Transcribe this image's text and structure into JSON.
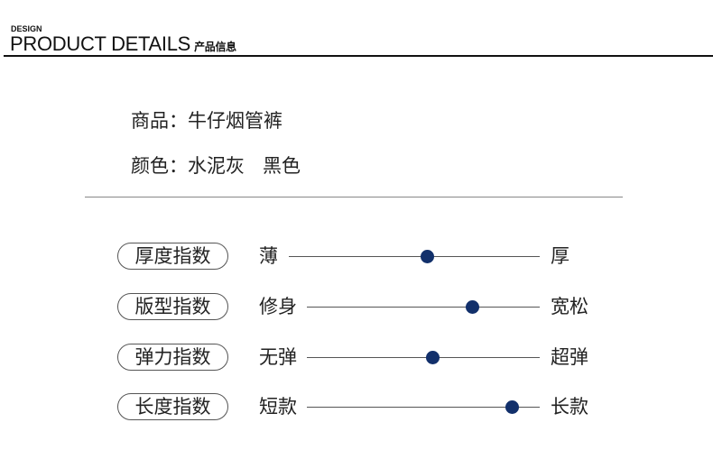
{
  "header": {
    "small": "DESIGN",
    "title": "PRODUCT DETAILS",
    "title_cn": "产品信息"
  },
  "info": {
    "product": "商品：牛仔烟管裤",
    "color": "颜色：水泥灰   黑色"
  },
  "accent": "#12306b",
  "indices": [
    {
      "label": "厚度指数",
      "left": "薄",
      "right": "厚",
      "value": 0.55
    },
    {
      "label": "版型指数",
      "left": "修身",
      "right": "宽松",
      "value": 0.71
    },
    {
      "label": "弹力指数",
      "left": "无弹",
      "right": "超弹",
      "value": 0.54
    },
    {
      "label": "长度指数",
      "left": "短款",
      "right": "长款",
      "value": 0.88
    }
  ]
}
